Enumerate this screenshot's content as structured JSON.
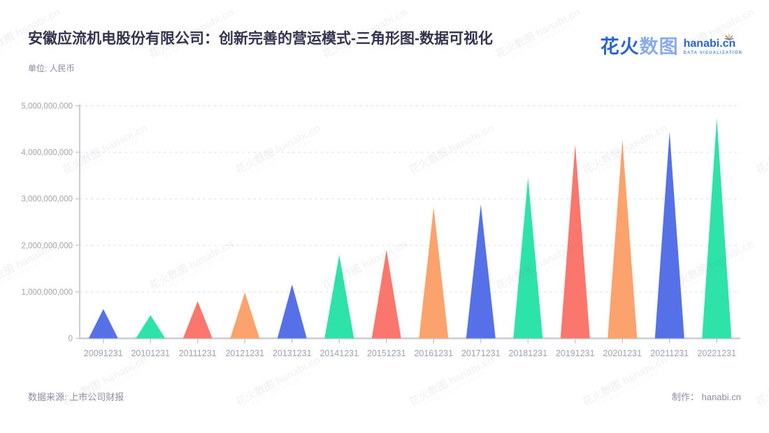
{
  "header": {
    "title": "安徽应流机电股份有限公司：创新完善的营运模式-三角形图-数据可视化",
    "subtitle": "单位: 人民币"
  },
  "logo": {
    "brand_cn_primary": "花火",
    "brand_cn_secondary": "数图",
    "domain": "hanabi.cn",
    "tagline": "DATA VISUALIZATION"
  },
  "footer": {
    "source": "数据来源: 上市公司财报",
    "credit": "制作： hanabi.cn"
  },
  "watermark": {
    "line1": "花火数图 hanabi.cn",
    "line2": "DATA VISUALIZATION"
  },
  "chart_data": {
    "type": "bar",
    "mark_shape": "triangle",
    "title": "安徽应流机电股份有限公司：创新完善的营运模式-三角形图-数据可视化",
    "unit": "人民币",
    "categories": [
      "20091231",
      "20101231",
      "20111231",
      "20121231",
      "20131231",
      "20141231",
      "20151231",
      "20161231",
      "20171231",
      "20181231",
      "20191231",
      "20201231",
      "20211231",
      "20221231"
    ],
    "values": [
      630000000,
      500000000,
      800000000,
      990000000,
      1160000000,
      1800000000,
      1900000000,
      2820000000,
      2880000000,
      3460000000,
      4170000000,
      4280000000,
      4440000000,
      4740000000
    ],
    "ylim": [
      0,
      5000000000
    ],
    "yticks": [
      0,
      1000000000,
      2000000000,
      3000000000,
      4000000000,
      5000000000
    ],
    "ytick_labels": [
      "0",
      "1,000,000,000",
      "2,000,000,000",
      "3,000,000,000",
      "4,000,000,000",
      "5,000,000,000"
    ],
    "palette": [
      "#5671e8",
      "#2de3a7",
      "#fb776e",
      "#fca26c"
    ],
    "grid": "horizontal-dashed",
    "legend": "none",
    "xlabel": "",
    "ylabel": ""
  }
}
